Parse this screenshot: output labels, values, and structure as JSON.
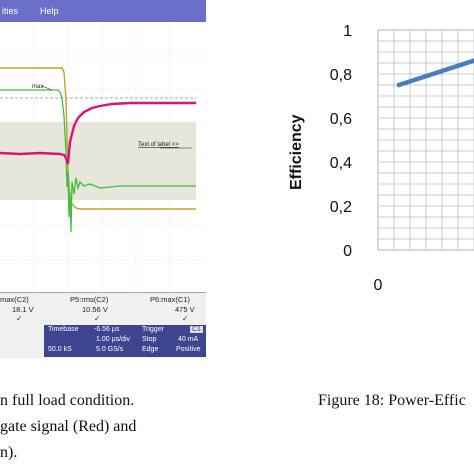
{
  "scope": {
    "menu": [
      "ities",
      "Help"
    ],
    "channel_label": "max",
    "label_text": "Text of label >>",
    "measurements": [
      {
        "name": "max(C2)",
        "value": "18.1 V"
      },
      {
        "name": "P5:rms(C2)",
        "value": "10.56 V"
      },
      {
        "name": "P6:max(C1)",
        "value": "475 V"
      }
    ],
    "timebase": {
      "label": "Timebase",
      "value": "-6.56 µs",
      "div": "1.00 µs/div",
      "samples": "50.0 kS",
      "rate": "5.0 GS/s"
    },
    "trigger": {
      "label": "Trigger",
      "channel": "C1",
      "mode": "Stop",
      "level": "40 mA",
      "type": "Edge",
      "slope": "Positive"
    },
    "colors": {
      "red": "#d4157e",
      "green": "#3fbf3f",
      "yellow": "#b7a32a",
      "menubar": "#6a70c9"
    }
  },
  "caption_left": {
    "line1": "n full load condition.",
    "line2": "gate signal (Red) and",
    "line3": "n)."
  },
  "caption_right": {
    "line1": "Figure 18: Power-Effic"
  },
  "chart_data": {
    "type": "line",
    "ylabel": "Efficiency",
    "ylim": [
      0,
      1
    ],
    "yticks": [
      "0",
      "0,2",
      "0,4",
      "0,6",
      "0,8",
      "1"
    ],
    "xticks": [
      "0"
    ],
    "grid": true,
    "series": [
      {
        "x": [
          0.08,
          0.42
        ],
        "y": [
          0.75,
          0.88
        ],
        "color": "#4a7ebb"
      }
    ]
  }
}
